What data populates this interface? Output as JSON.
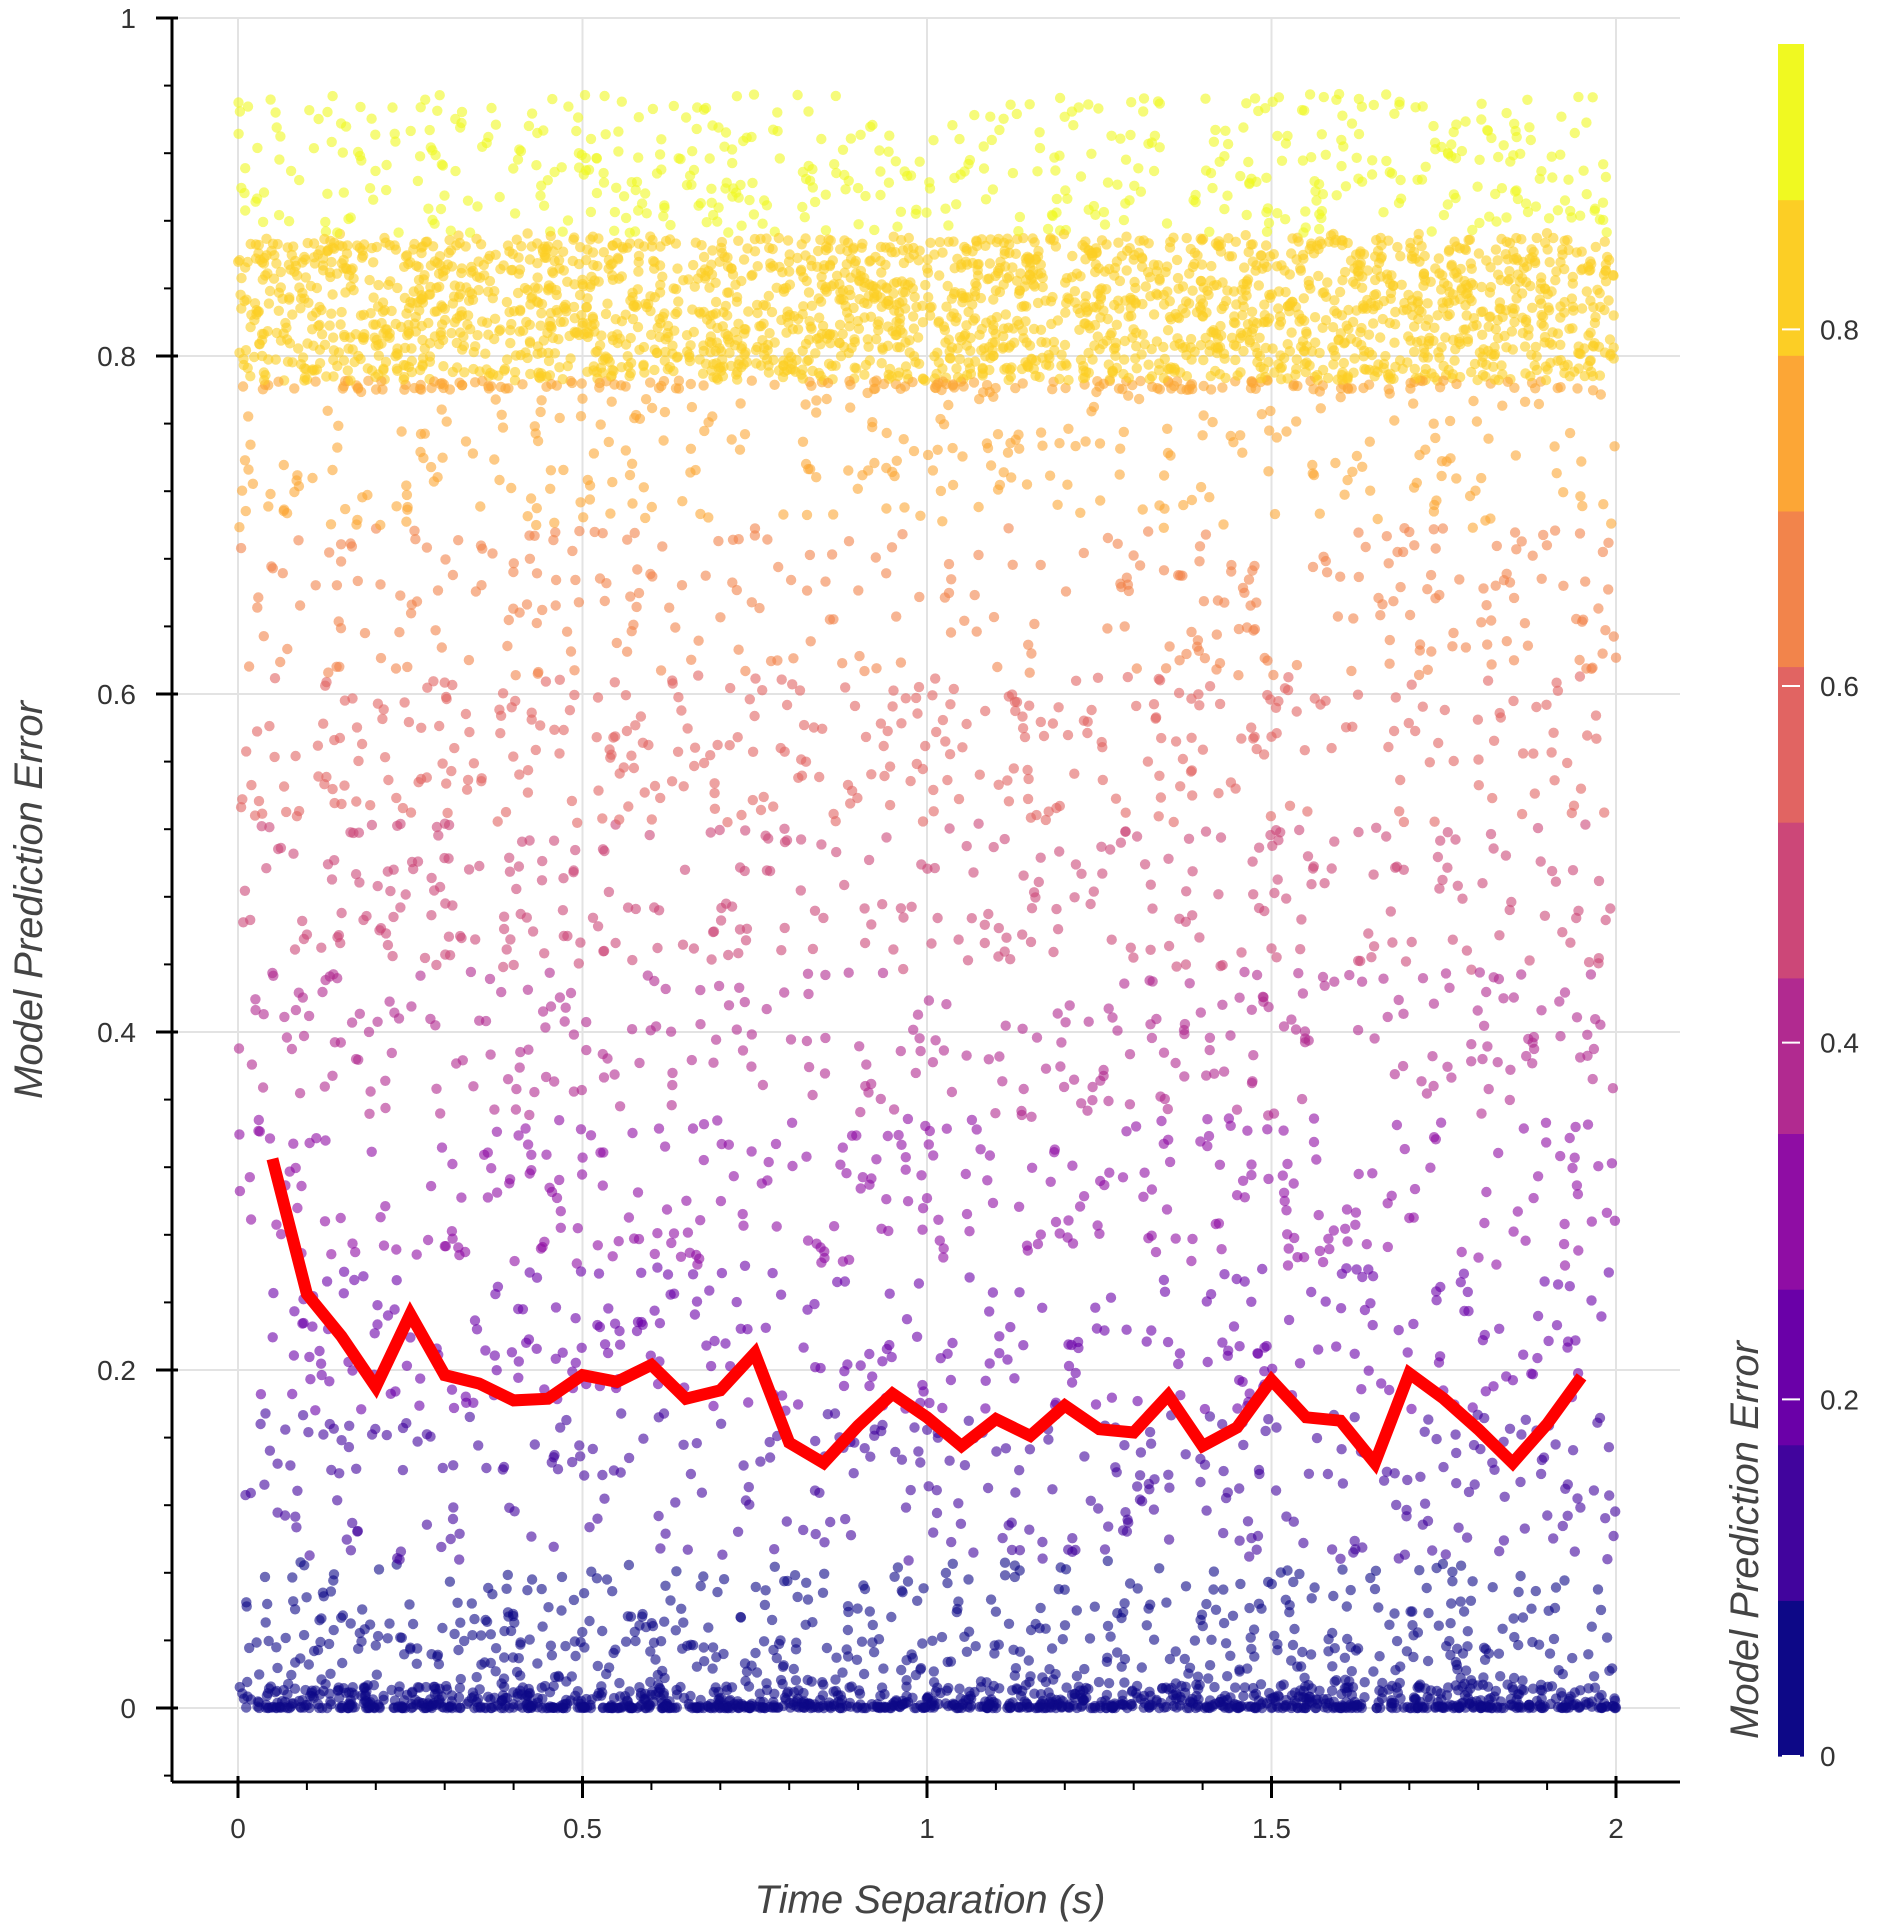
{
  "chart_data": {
    "type": "scatter",
    "title": "",
    "xlabel": "Time Separation (s)",
    "ylabel": "Model Prediction Error",
    "xlim": [
      -0.1,
      2.1
    ],
    "ylim": [
      -0.04,
      1.0
    ],
    "x_ticks": [
      0,
      0.5,
      1,
      1.5,
      2
    ],
    "x_tick_labels": [
      "0",
      "0.5",
      "1",
      "1.5",
      "2"
    ],
    "y_ticks": [
      0,
      0.2,
      0.4,
      0.6,
      0.8,
      1
    ],
    "y_tick_labels": [
      "0",
      "0.2",
      "0.4",
      "0.6",
      "0.8",
      "1"
    ],
    "grid": true,
    "scatter_points_count": "approximately 10000, uniformly spread over x in [0, 2]; concentrated near 0 and between 0.78 and 0.95",
    "scatter_color_mapping": "color = Model Prediction Error (plasma palette)",
    "line_series": {
      "color": "#ff0000",
      "x": [
        0.05,
        0.1,
        0.15,
        0.2,
        0.25,
        0.3,
        0.35,
        0.4,
        0.45,
        0.5,
        0.55,
        0.6,
        0.65,
        0.7,
        0.75,
        0.8,
        0.85,
        0.9,
        0.95,
        1.0,
        1.05,
        1.1,
        1.15,
        1.2,
        1.25,
        1.3,
        1.35,
        1.4,
        1.45,
        1.5,
        1.55,
        1.6,
        1.65,
        1.7,
        1.75,
        1.8,
        1.85,
        1.9,
        1.95
      ],
      "y": [
        0.325,
        0.245,
        0.22,
        0.19,
        0.233,
        0.197,
        0.192,
        0.182,
        0.183,
        0.197,
        0.193,
        0.203,
        0.183,
        0.188,
        0.21,
        0.157,
        0.145,
        0.167,
        0.186,
        0.172,
        0.155,
        0.171,
        0.161,
        0.179,
        0.165,
        0.163,
        0.185,
        0.155,
        0.166,
        0.194,
        0.172,
        0.17,
        0.145,
        0.198,
        0.183,
        0.165,
        0.145,
        0.168,
        0.196
      ]
    },
    "colorbar": {
      "label": "Model Prediction Error",
      "range": [
        0,
        0.96
      ],
      "ticks": [
        0,
        0.2,
        0.4,
        0.6,
        0.8
      ],
      "tick_labels": [
        "0",
        "0.2",
        "0.4",
        "0.6",
        "0.8"
      ],
      "palette": [
        "#0d0887",
        "#41049d",
        "#6a00a8",
        "#8f0da4",
        "#b12a90",
        "#cc4778",
        "#e16462",
        "#f2844b",
        "#fca636",
        "#fcce25",
        "#f0f921"
      ]
    }
  }
}
